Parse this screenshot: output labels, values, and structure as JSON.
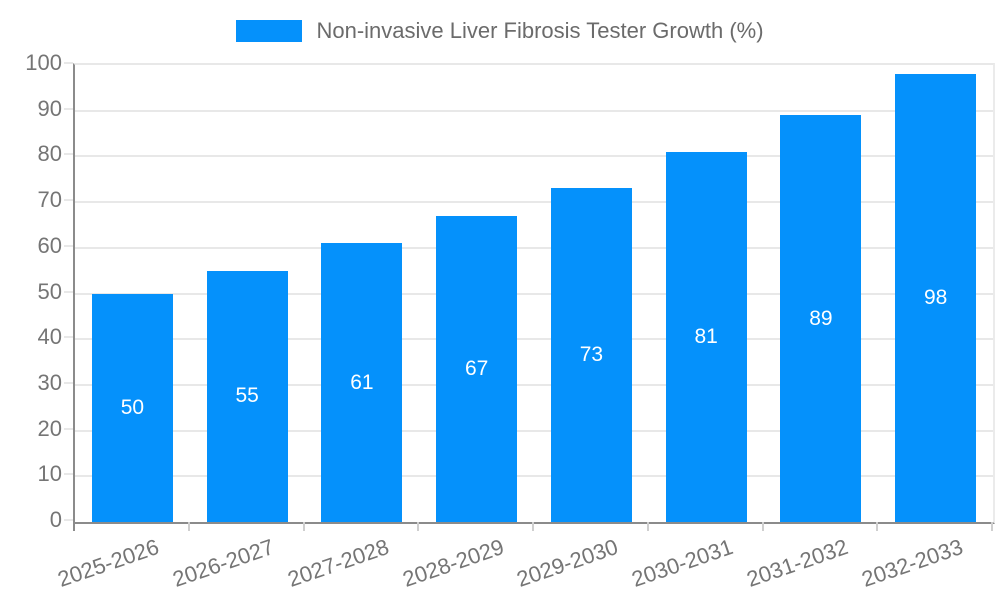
{
  "legend": {
    "label": "Non-invasive Liver Fibrosis Tester Growth (%)",
    "swatch_color": "#0591fb"
  },
  "chart_data": {
    "type": "bar",
    "title": "Non-invasive Liver Fibrosis Tester Growth (%)",
    "categories": [
      "2025-2026",
      "2026-2027",
      "2027-2028",
      "2028-2029",
      "2029-2030",
      "2030-2031",
      "2031-2032",
      "2032-2033"
    ],
    "values": [
      50,
      55,
      61,
      67,
      73,
      81,
      89,
      98
    ],
    "series": [
      {
        "name": "Non-invasive Liver Fibrosis Tester Growth (%)",
        "values": [
          50,
          55,
          61,
          67,
          73,
          81,
          89,
          98
        ]
      }
    ],
    "xlabel": "",
    "ylabel": "",
    "ylim": [
      0,
      100
    ],
    "y_ticks": [
      0,
      10,
      20,
      30,
      40,
      50,
      60,
      70,
      80,
      90,
      100
    ],
    "grid": true,
    "legend_position": "top",
    "value_labels_shown": true,
    "colors": {
      "bar": "#0591fb",
      "value_label": "#ffffff",
      "axis_text": "#757575",
      "gridline": "#e8e8e8",
      "axis_line": "#8b8b8b"
    }
  }
}
